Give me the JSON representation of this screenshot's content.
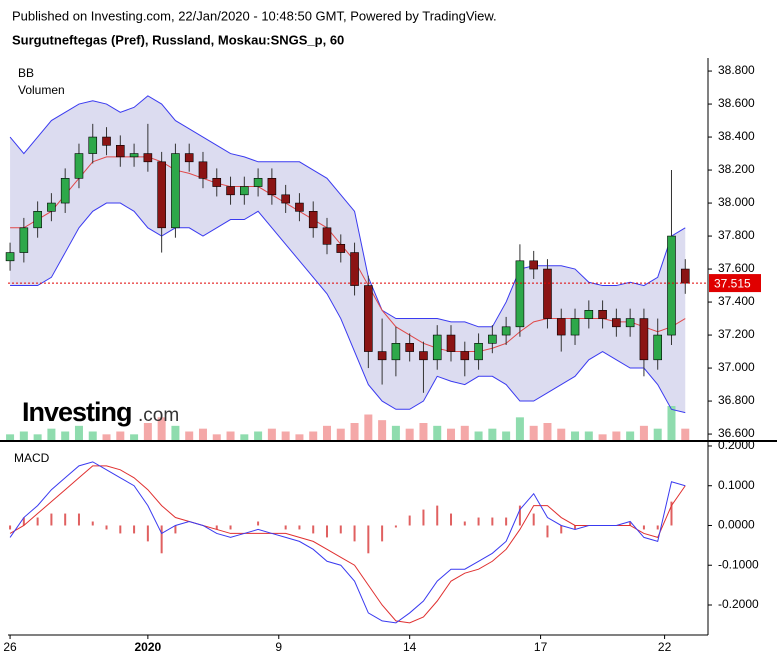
{
  "header": {
    "published": "Published on Investing.com, 22/Jan/2020 - 10:48:50 GMT, Powered by TradingView.",
    "symbol": "Surgutneftegas (Pref), Russland, Moskau:SNGS_p, 60",
    "logo_main": "Investing",
    "logo_suffix": ".com"
  },
  "chart_data": [
    {
      "type": "candlestick",
      "legend": [
        "BB",
        "Volumen"
      ],
      "x": [
        0,
        1,
        2,
        3,
        4,
        5,
        6,
        7,
        8,
        9,
        10,
        11,
        12,
        13,
        14,
        15,
        16,
        17,
        18,
        19,
        20,
        21,
        22,
        23,
        24,
        25,
        26,
        27,
        28,
        29,
        30,
        31,
        32,
        33,
        34,
        35,
        36,
        37,
        38,
        39,
        40,
        41,
        42,
        43,
        44,
        45,
        46,
        47,
        48,
        49
      ],
      "xlim": [
        -0.15,
        50.65
      ],
      "xticks": [
        {
          "value": 0,
          "label": "26"
        },
        {
          "value": 10,
          "label": "2020"
        },
        {
          "value": 19.5,
          "label": "9"
        },
        {
          "value": 29,
          "label": "14"
        },
        {
          "value": 38.5,
          "label": "17"
        },
        {
          "value": 47.5,
          "label": "22"
        }
      ],
      "ylim": [
        36.564,
        38.867
      ],
      "yticks": [
        {
          "value": 36.6,
          "label": "36.600"
        },
        {
          "value": 36.8,
          "label": "36.800"
        },
        {
          "value": 37.0,
          "label": "37.000"
        },
        {
          "value": 37.2,
          "label": "37.200"
        },
        {
          "value": 37.4,
          "label": "37.400"
        },
        {
          "value": 37.6,
          "label": "37.600"
        },
        {
          "value": 37.8,
          "label": "37.800"
        },
        {
          "value": 38.0,
          "label": "38.000"
        },
        {
          "value": 38.2,
          "label": "38.200"
        },
        {
          "value": 38.4,
          "label": "38.400"
        },
        {
          "value": 38.6,
          "label": "38.600"
        },
        {
          "value": 38.8,
          "label": "38.800"
        }
      ],
      "open": [
        37.65,
        37.7,
        37.85,
        37.95,
        38.0,
        38.15,
        38.3,
        38.4,
        38.35,
        38.28,
        38.3,
        38.25,
        37.85,
        38.3,
        38.25,
        38.15,
        38.1,
        38.05,
        38.1,
        38.15,
        38.05,
        38.0,
        37.95,
        37.85,
        37.75,
        37.7,
        37.5,
        37.1,
        37.05,
        37.15,
        37.1,
        37.05,
        37.2,
        37.1,
        37.05,
        37.15,
        37.2,
        37.25,
        37.65,
        37.6,
        37.3,
        37.2,
        37.3,
        37.35,
        37.3,
        37.25,
        37.3,
        37.05,
        37.2,
        37.6
      ],
      "high": [
        37.76,
        37.91,
        38.01,
        38.06,
        38.21,
        38.36,
        38.48,
        38.46,
        38.41,
        38.36,
        38.48,
        38.31,
        38.36,
        38.36,
        38.31,
        38.21,
        38.16,
        38.16,
        38.21,
        38.21,
        38.11,
        38.06,
        38.01,
        37.91,
        37.81,
        37.76,
        37.56,
        37.3,
        37.25,
        37.21,
        37.16,
        37.26,
        37.26,
        37.16,
        37.21,
        37.26,
        37.31,
        37.75,
        37.71,
        37.66,
        37.36,
        37.36,
        37.41,
        37.41,
        37.36,
        37.36,
        37.36,
        37.3,
        38.2,
        37.66
      ],
      "low": [
        37.59,
        37.64,
        37.79,
        37.89,
        37.94,
        38.09,
        38.24,
        38.29,
        38.22,
        38.22,
        38.19,
        37.7,
        37.79,
        38.19,
        38.09,
        38.04,
        37.99,
        37.99,
        38.04,
        37.99,
        37.94,
        37.89,
        37.79,
        37.69,
        37.64,
        37.44,
        37.0,
        36.9,
        36.95,
        37.04,
        36.85,
        36.99,
        37.04,
        36.95,
        36.99,
        37.09,
        37.14,
        37.19,
        37.54,
        37.24,
        37.1,
        37.14,
        37.24,
        37.24,
        37.19,
        37.19,
        36.95,
        36.99,
        37.14,
        37.45
      ],
      "close": [
        37.7,
        37.85,
        37.95,
        38.0,
        38.15,
        38.3,
        38.4,
        38.35,
        38.28,
        38.3,
        38.25,
        37.85,
        38.3,
        38.25,
        38.15,
        38.1,
        38.05,
        38.1,
        38.15,
        38.05,
        38.0,
        37.95,
        37.85,
        37.75,
        37.7,
        37.5,
        37.1,
        37.05,
        37.15,
        37.1,
        37.05,
        37.2,
        37.1,
        37.05,
        37.15,
        37.2,
        37.25,
        37.65,
        37.6,
        37.3,
        37.2,
        37.3,
        37.35,
        37.3,
        37.25,
        37.3,
        37.05,
        37.2,
        37.8,
        37.515
      ],
      "bb_upper": [
        38.4,
        38.3,
        38.4,
        38.5,
        38.55,
        38.6,
        38.62,
        38.6,
        38.55,
        38.58,
        38.65,
        38.6,
        38.5,
        38.45,
        38.4,
        38.35,
        38.3,
        38.28,
        38.25,
        38.25,
        38.25,
        38.25,
        38.2,
        38.15,
        38.05,
        37.95,
        37.55,
        37.35,
        37.3,
        37.3,
        37.3,
        37.3,
        37.28,
        37.28,
        37.25,
        37.25,
        37.4,
        37.6,
        37.62,
        37.62,
        37.62,
        37.6,
        37.52,
        37.5,
        37.5,
        37.52,
        37.5,
        37.55,
        37.8,
        37.85
      ],
      "bb_middle": [
        37.85,
        37.85,
        37.9,
        37.95,
        38.05,
        38.15,
        38.25,
        38.28,
        38.28,
        38.28,
        38.28,
        38.25,
        38.2,
        38.18,
        38.15,
        38.12,
        38.1,
        38.1,
        38.1,
        38.05,
        38.0,
        37.95,
        37.9,
        37.85,
        37.75,
        37.65,
        37.5,
        37.35,
        37.25,
        37.2,
        37.15,
        37.12,
        37.1,
        37.1,
        37.1,
        37.12,
        37.15,
        37.22,
        37.28,
        37.3,
        37.3,
        37.3,
        37.3,
        37.3,
        37.28,
        37.28,
        37.25,
        37.22,
        37.25,
        37.3
      ],
      "bb_lower": [
        37.5,
        37.5,
        37.5,
        37.55,
        37.7,
        37.85,
        37.95,
        38.0,
        38.0,
        37.95,
        37.85,
        37.8,
        37.85,
        37.85,
        37.8,
        37.85,
        37.9,
        37.9,
        37.95,
        37.85,
        37.75,
        37.65,
        37.55,
        37.45,
        37.3,
        37.1,
        36.9,
        36.8,
        36.75,
        36.75,
        36.8,
        36.95,
        36.92,
        36.9,
        36.95,
        36.95,
        36.9,
        36.8,
        36.8,
        36.85,
        36.9,
        36.95,
        37.05,
        37.1,
        37.05,
        37.0,
        37.0,
        36.9,
        36.75,
        36.73
      ],
      "volume": [
        2,
        3,
        2,
        4,
        3,
        5,
        3,
        2,
        3,
        2,
        6,
        8,
        5,
        3,
        4,
        2,
        3,
        2,
        3,
        4,
        3,
        2,
        3,
        5,
        4,
        6,
        9,
        7,
        5,
        4,
        6,
        5,
        4,
        5,
        3,
        4,
        3,
        8,
        5,
        6,
        4,
        3,
        3,
        2,
        3,
        3,
        5,
        4,
        12,
        4
      ],
      "last_price": 37.515,
      "colors": {
        "up": "#2ea84a",
        "down": "#8b1414",
        "band": "#3a3af0",
        "band_fill": "#dcdcf0",
        "middle": "#e04848",
        "vol_up": "#8fdcae",
        "vol_down": "#f4a8a8",
        "last": "#e00000"
      }
    },
    {
      "type": "macd",
      "legend": [
        "MACD"
      ],
      "x": [
        0,
        1,
        2,
        3,
        4,
        5,
        6,
        7,
        8,
        9,
        10,
        11,
        12,
        13,
        14,
        15,
        16,
        17,
        18,
        19,
        20,
        21,
        22,
        23,
        24,
        25,
        26,
        27,
        28,
        29,
        30,
        31,
        32,
        33,
        34,
        35,
        36,
        37,
        38,
        39,
        40,
        41,
        42,
        43,
        44,
        45,
        46,
        47,
        48,
        49
      ],
      "xlim": [
        -0.15,
        50.65
      ],
      "ylim": [
        -0.2755,
        0.21
      ],
      "yticks": [
        {
          "value": -0.2,
          "label": "-0.2000"
        },
        {
          "value": -0.1,
          "label": "-0.1000"
        },
        {
          "value": 0,
          "label": "0.0000"
        },
        {
          "value": 0.1,
          "label": "0.1000"
        },
        {
          "value": 0.2,
          "label": "0.2000"
        }
      ],
      "macd": [
        -0.03,
        0.02,
        0.05,
        0.09,
        0.12,
        0.15,
        0.16,
        0.14,
        0.12,
        0.1,
        0.05,
        -0.02,
        0.0,
        0.01,
        0.0,
        -0.02,
        -0.03,
        -0.02,
        -0.01,
        -0.02,
        -0.03,
        -0.04,
        -0.06,
        -0.09,
        -0.1,
        -0.14,
        -0.22,
        -0.24,
        -0.245,
        -0.22,
        -0.19,
        -0.14,
        -0.11,
        -0.11,
        -0.09,
        -0.07,
        -0.04,
        0.04,
        0.08,
        0.02,
        0.0,
        -0.01,
        0.0,
        0.0,
        0.0,
        0.01,
        -0.03,
        -0.04,
        0.11,
        0.1
      ],
      "signal": [
        -0.02,
        0.0,
        0.03,
        0.06,
        0.09,
        0.12,
        0.15,
        0.15,
        0.14,
        0.12,
        0.09,
        0.05,
        0.02,
        0.01,
        0.0,
        -0.01,
        -0.02,
        -0.02,
        -0.02,
        -0.02,
        -0.02,
        -0.03,
        -0.04,
        -0.06,
        -0.08,
        -0.1,
        -0.15,
        -0.2,
        -0.24,
        -0.245,
        -0.23,
        -0.19,
        -0.14,
        -0.12,
        -0.11,
        -0.09,
        -0.06,
        -0.01,
        0.05,
        0.05,
        0.02,
        0.0,
        0.0,
        0.0,
        0.0,
        0.0,
        -0.02,
        -0.03,
        0.05,
        0.1
      ],
      "histogram": [
        -0.01,
        0.02,
        0.02,
        0.03,
        0.03,
        0.03,
        0.01,
        -0.01,
        -0.02,
        -0.02,
        -0.04,
        -0.07,
        -0.02,
        0.0,
        0.0,
        -0.01,
        -0.01,
        0.0,
        0.01,
        0.0,
        -0.01,
        -0.01,
        -0.02,
        -0.03,
        -0.02,
        -0.04,
        -0.07,
        -0.04,
        -0.005,
        0.025,
        0.04,
        0.05,
        0.03,
        0.01,
        0.02,
        0.02,
        0.02,
        0.05,
        0.03,
        -0.03,
        -0.02,
        -0.01,
        0.0,
        0.0,
        0.0,
        0.01,
        -0.01,
        -0.01,
        0.06,
        0.0
      ],
      "colors": {
        "macd": "#3a3af0",
        "signal": "#e03030",
        "histogram": "#e06060"
      }
    }
  ]
}
